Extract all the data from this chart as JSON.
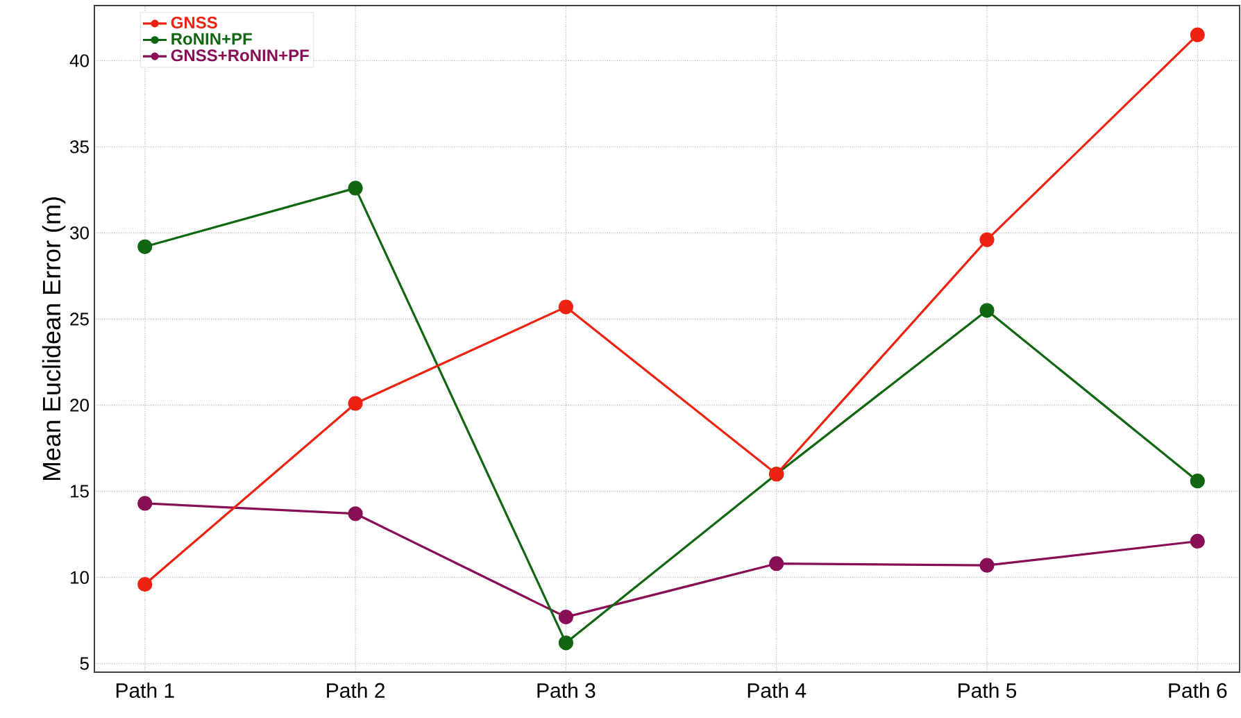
{
  "chart_data": {
    "type": "line",
    "ylabel": "Mean Euclidean Error (m)",
    "categories": [
      "Path 1",
      "Path 2",
      "Path 3",
      "Path 4",
      "Path 5",
      "Path 6"
    ],
    "series": [
      {
        "name": "GNSS",
        "color": "#ee2211",
        "values": [
          9.6,
          20.1,
          25.7,
          16.0,
          29.6,
          41.5
        ]
      },
      {
        "name": "RoNIN+PF",
        "color": "#116611",
        "values": [
          29.2,
          32.6,
          6.2,
          16.0,
          25.5,
          15.6
        ]
      },
      {
        "name": "GNSS+RoNIN+PF",
        "color": "#880e55",
        "values": [
          14.3,
          13.7,
          7.7,
          10.8,
          10.7,
          12.1
        ]
      }
    ],
    "ylim": [
      4.5,
      43.2
    ],
    "yticks": [
      5,
      10,
      15,
      20,
      25,
      30,
      35,
      40
    ],
    "grid": true,
    "legend": "top left",
    "marker": "circle",
    "line_style": "solid"
  }
}
